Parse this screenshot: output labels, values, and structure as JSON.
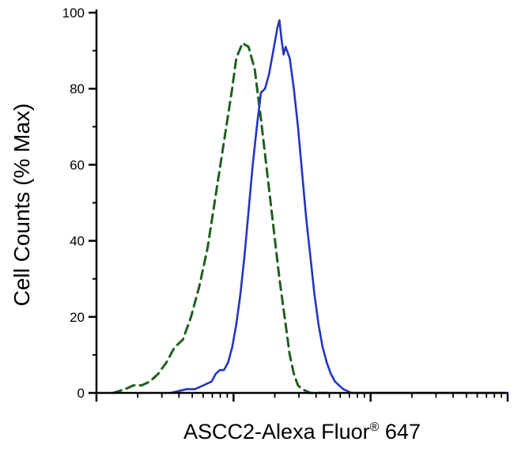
{
  "chart_data": {
    "type": "line",
    "title": "",
    "xlabel": "ASCC2-Alexa Fluor® 647",
    "xlabel_parts": {
      "prefix": "ASCC2-Alexa Fluor",
      "sup": "®",
      "suffix": " 647"
    },
    "ylabel": "Cell Counts (% Max)",
    "ylim": [
      0,
      100
    ],
    "yticks": [
      0,
      20,
      40,
      60,
      80,
      100
    ],
    "yticks_minor": [
      10,
      30,
      50,
      70,
      90
    ],
    "x_axis": {
      "scale": "log",
      "decades": 3,
      "tick_labels_shown": false
    },
    "grid": false,
    "legend": "none",
    "axis_color": "#000000",
    "series": [
      {
        "name": "dashed-green-control",
        "style": "dashed",
        "color": "#1f5f1f",
        "stroke_width": 3,
        "x": [
          4,
          7,
          9,
          11,
          13,
          15,
          17,
          19,
          21,
          23,
          25,
          27,
          29,
          31,
          33,
          34,
          35.5,
          37,
          38.5,
          40,
          41.5,
          43,
          44.5,
          46,
          47,
          48,
          49,
          50,
          52,
          56
        ],
        "y": [
          0,
          1,
          2,
          2,
          3,
          5,
          8,
          12,
          14,
          20,
          28,
          38,
          52,
          66,
          80,
          88,
          92,
          91,
          85,
          72,
          58,
          44,
          30,
          18,
          10,
          5,
          2,
          1,
          0,
          0
        ]
      },
      {
        "name": "solid-blue-ascc2",
        "style": "solid",
        "color": "#2436c0",
        "stroke_width": 2.6,
        "x": [
          18,
          22,
          24,
          26,
          28,
          29,
          30,
          31,
          32,
          33,
          34,
          35,
          36,
          37,
          38,
          39,
          40,
          41,
          42,
          43,
          44,
          44.5,
          45,
          45.5,
          46,
          47,
          48,
          49,
          50,
          51,
          52,
          53,
          54,
          55,
          56,
          57,
          58,
          59,
          60,
          62,
          66,
          100
        ],
        "y": [
          0,
          1,
          1,
          2,
          3,
          5,
          6,
          6,
          8,
          12,
          18,
          26,
          36,
          48,
          60,
          70,
          79,
          80,
          84,
          90,
          96,
          98,
          93,
          89,
          91,
          88,
          80,
          70,
          58,
          46,
          36,
          26,
          18,
          12,
          8,
          5,
          3,
          2,
          1,
          0,
          0,
          0
        ]
      }
    ]
  }
}
